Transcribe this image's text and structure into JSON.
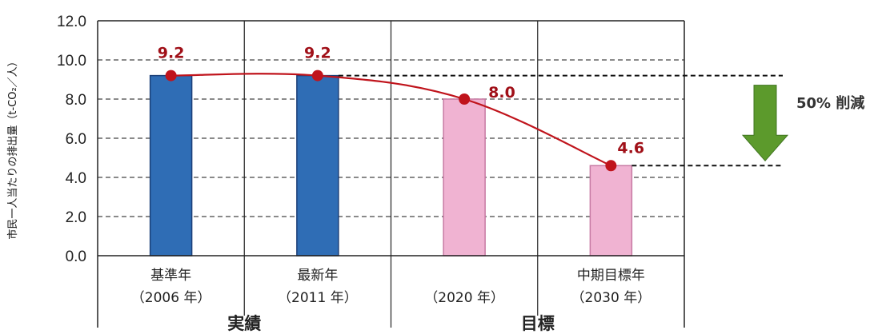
{
  "chart_data": {
    "type": "bar",
    "ylabel": "市民一人当たりの排出量（t-CO₂／人）",
    "ylim": [
      0,
      12
    ],
    "yticks": [
      "0.0",
      "2.0",
      "4.0",
      "6.0",
      "8.0",
      "10.0",
      "12.0"
    ],
    "grid": "horizontal dashed",
    "categories": [
      {
        "line1": "基準年",
        "line2": "（2006 年）"
      },
      {
        "line1": "最新年",
        "line2": "（2011 年）"
      },
      {
        "line1": "",
        "line2": "（2020 年）"
      },
      {
        "line1": "中期目標年",
        "line2": "（2030 年）"
      }
    ],
    "values": [
      9.2,
      9.2,
      8.0,
      4.6
    ],
    "value_labels": [
      "9.2",
      "9.2",
      "8.0",
      "4.6"
    ],
    "bar_kinds": [
      "actual",
      "actual",
      "target",
      "target"
    ],
    "groups": [
      {
        "label": "実績",
        "categories": [
          0,
          1
        ]
      },
      {
        "label": "目標",
        "categories": [
          2,
          3
        ]
      }
    ],
    "annotation": {
      "label": "50% 削減",
      "from": 9.2,
      "to": 4.6
    },
    "colors": {
      "actual_bar": "#2f6db5",
      "actual_bar_edge": "#1b3f78",
      "target_bar": "#f0b3d2",
      "target_bar_edge": "#c77aa3",
      "trend_line": "#c0141c",
      "arrow": "#5c9a2c"
    }
  }
}
